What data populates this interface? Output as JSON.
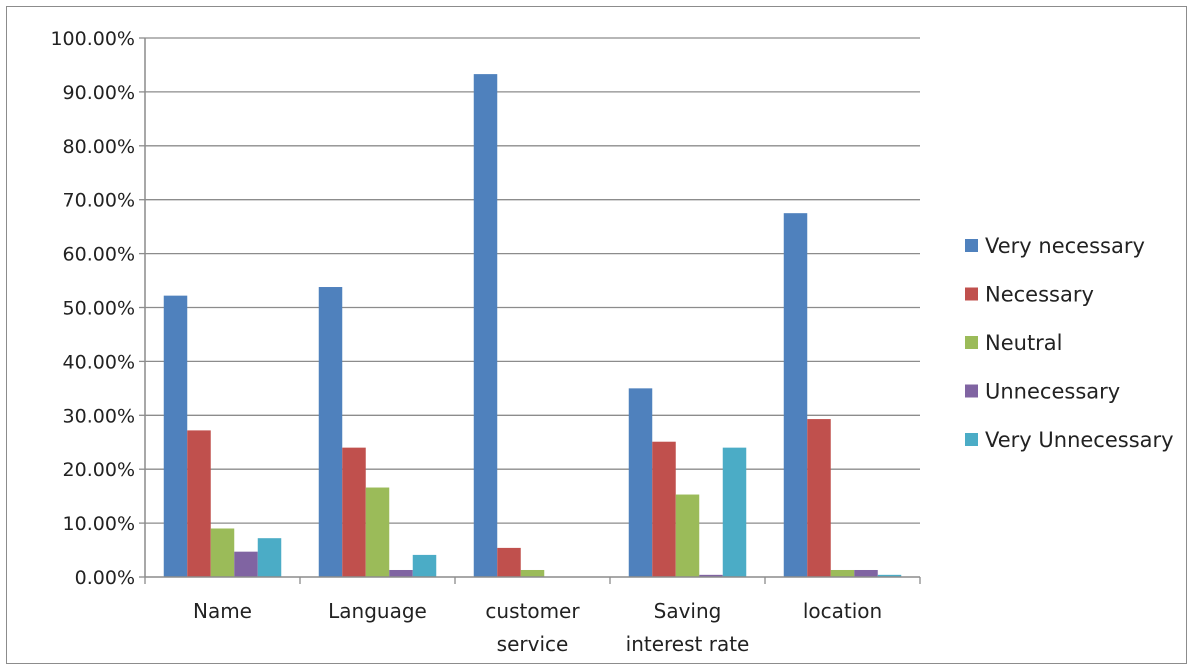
{
  "chart_data": {
    "type": "bar",
    "title": "",
    "xlabel": "",
    "ylabel": "",
    "categories": [
      [
        "Name"
      ],
      [
        "Language"
      ],
      [
        "customer",
        "service"
      ],
      [
        "Saving",
        "interest rate"
      ],
      [
        "location"
      ]
    ],
    "ylim": [
      0,
      100
    ],
    "ytick_step": 10,
    "ytick_format": "percent_2dp",
    "grid": true,
    "legend_position": "right",
    "series": [
      {
        "name": "Very necessary",
        "color": "#4F81BD",
        "values": [
          52.2,
          53.8,
          93.3,
          35.0,
          67.5
        ]
      },
      {
        "name": "Necessary",
        "color": "#C0504D",
        "values": [
          27.2,
          24.0,
          5.4,
          25.1,
          29.3
        ]
      },
      {
        "name": "Neutral",
        "color": "#9BBB59",
        "values": [
          9.0,
          16.6,
          1.3,
          15.3,
          1.3
        ]
      },
      {
        "name": "Unnecessary",
        "color": "#8064A2",
        "values": [
          4.7,
          1.3,
          0.0,
          0.4,
          1.3
        ]
      },
      {
        "name": "Very Unnecessary",
        "color": "#4BACC6",
        "values": [
          7.2,
          4.1,
          0.0,
          24.0,
          0.4
        ]
      }
    ]
  }
}
